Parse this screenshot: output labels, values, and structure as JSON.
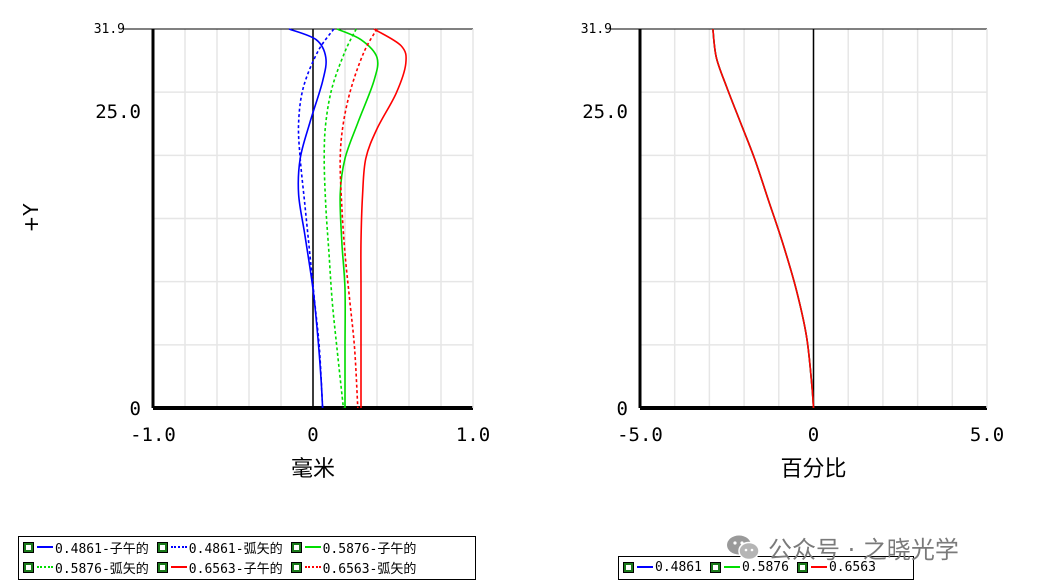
{
  "chart_data": [
    {
      "type": "line",
      "title": "",
      "xlabel": "毫米",
      "ylabel": "+Y",
      "xlim": [
        -1.0,
        1.0
      ],
      "ylim": [
        0,
        31.9
      ],
      "x_ticks": [
        "-1.0",
        "0",
        "1.0"
      ],
      "y_ticks": [
        "0",
        "25.0",
        "31.9"
      ],
      "grid": true,
      "series": [
        {
          "name": "0.4861-子午的",
          "color": "#0000ff",
          "style": "solid",
          "points": [
            [
              -0.15,
              31.9
            ],
            [
              0.02,
              31.0
            ],
            [
              0.08,
              29.5
            ],
            [
              0.06,
              27.5
            ],
            [
              -0.02,
              24.0
            ],
            [
              -0.08,
              21.0
            ],
            [
              -0.09,
              18.0
            ],
            [
              -0.05,
              14.5
            ],
            [
              0.0,
              10.0
            ],
            [
              0.03,
              6.0
            ],
            [
              0.05,
              2.5
            ],
            [
              0.06,
              0
            ]
          ]
        },
        {
          "name": "0.4861-弧矢的",
          "color": "#0000ff",
          "style": "dashed",
          "points": [
            [
              0.13,
              31.9
            ],
            [
              0.03,
              30.0
            ],
            [
              -0.06,
              27.0
            ],
            [
              -0.09,
              24.0
            ],
            [
              -0.08,
              21.0
            ],
            [
              -0.05,
              17.0
            ],
            [
              -0.02,
              13.0
            ],
            [
              0.01,
              9.0
            ],
            [
              0.04,
              5.0
            ],
            [
              0.06,
              0
            ]
          ]
        },
        {
          "name": "0.5876-子午的",
          "color": "#00dd00",
          "style": "solid",
          "points": [
            [
              0.15,
              31.9
            ],
            [
              0.3,
              31.0
            ],
            [
              0.4,
              29.5
            ],
            [
              0.38,
              27.5
            ],
            [
              0.28,
              24.0
            ],
            [
              0.2,
              21.0
            ],
            [
              0.17,
              18.0
            ],
            [
              0.18,
              14.0
            ],
            [
              0.2,
              10.0
            ],
            [
              0.2,
              5.0
            ],
            [
              0.2,
              0
            ]
          ]
        },
        {
          "name": "0.5876-弧矢的",
          "color": "#00dd00",
          "style": "dashed",
          "points": [
            [
              0.27,
              31.9
            ],
            [
              0.2,
              30.0
            ],
            [
              0.12,
              27.0
            ],
            [
              0.08,
              24.0
            ],
            [
              0.07,
              21.0
            ],
            [
              0.08,
              17.0
            ],
            [
              0.1,
              13.0
            ],
            [
              0.12,
              9.0
            ],
            [
              0.15,
              5.0
            ],
            [
              0.19,
              0
            ]
          ]
        },
        {
          "name": "0.6563-子午的",
          "color": "#ff0000",
          "style": "solid",
          "points": [
            [
              0.38,
              31.9
            ],
            [
              0.55,
              30.5
            ],
            [
              0.58,
              29.0
            ],
            [
              0.52,
              26.5
            ],
            [
              0.4,
              23.5
            ],
            [
              0.33,
              21.0
            ],
            [
              0.31,
              18.0
            ],
            [
              0.3,
              14.0
            ],
            [
              0.3,
              10.0
            ],
            [
              0.3,
              5.0
            ],
            [
              0.3,
              0
            ]
          ]
        },
        {
          "name": "0.6563-弧矢的",
          "color": "#ff0000",
          "style": "dashed",
          "points": [
            [
              0.4,
              31.9
            ],
            [
              0.32,
              30.0
            ],
            [
              0.24,
              27.0
            ],
            [
              0.19,
              24.0
            ],
            [
              0.17,
              21.0
            ],
            [
              0.18,
              17.0
            ],
            [
              0.2,
              13.0
            ],
            [
              0.23,
              9.0
            ],
            [
              0.26,
              5.0
            ],
            [
              0.28,
              0
            ]
          ]
        }
      ],
      "legend": {
        "placement": "bottom",
        "rows": [
          [
            "0.4861-子午的",
            "0.4861-弧矢的",
            "0.5876-子午的"
          ],
          [
            "0.5876-弧矢的",
            "0.6563-子午的",
            "0.6563-弧矢的"
          ]
        ]
      }
    },
    {
      "type": "line",
      "title": "",
      "xlabel": "百分比",
      "ylabel": "",
      "xlim": [
        -5.0,
        5.0
      ],
      "ylim": [
        0,
        31.9
      ],
      "x_ticks": [
        "-5.0",
        "0",
        "5.0"
      ],
      "y_ticks": [
        "0",
        "25.0",
        "31.9"
      ],
      "grid": true,
      "series": [
        {
          "name": "0.4861",
          "color": "#0000ff",
          "style": "solid",
          "points": [
            [
              -2.9,
              31.9
            ],
            [
              -2.8,
              29.5
            ],
            [
              -2.5,
              27.0
            ],
            [
              -2.1,
              24.0
            ],
            [
              -1.7,
              21.0
            ],
            [
              -1.3,
              17.5
            ],
            [
              -0.9,
              14.0
            ],
            [
              -0.5,
              10.0
            ],
            [
              -0.2,
              6.0
            ],
            [
              -0.05,
              2.0
            ],
            [
              0,
              0
            ]
          ]
        },
        {
          "name": "0.5876",
          "color": "#00dd00",
          "style": "solid",
          "points": [
            [
              -2.9,
              31.9
            ],
            [
              -2.8,
              29.5
            ],
            [
              -2.5,
              27.0
            ],
            [
              -2.1,
              24.0
            ],
            [
              -1.7,
              21.0
            ],
            [
              -1.3,
              17.5
            ],
            [
              -0.9,
              14.0
            ],
            [
              -0.5,
              10.0
            ],
            [
              -0.2,
              6.0
            ],
            [
              -0.05,
              2.0
            ],
            [
              0,
              0
            ]
          ]
        },
        {
          "name": "0.6563",
          "color": "#ff0000",
          "style": "solid",
          "points": [
            [
              -2.9,
              31.9
            ],
            [
              -2.8,
              29.5
            ],
            [
              -2.5,
              27.0
            ],
            [
              -2.1,
              24.0
            ],
            [
              -1.7,
              21.0
            ],
            [
              -1.3,
              17.5
            ],
            [
              -0.9,
              14.0
            ],
            [
              -0.5,
              10.0
            ],
            [
              -0.2,
              6.0
            ],
            [
              -0.05,
              2.0
            ],
            [
              0,
              0
            ]
          ]
        }
      ],
      "legend": {
        "placement": "bottom",
        "rows": [
          [
            "0.4861",
            "0.5876",
            "0.6563"
          ]
        ]
      }
    }
  ],
  "watermark": {
    "text": "公众号 · 之晓光学",
    "icon": "wechat-icon"
  }
}
